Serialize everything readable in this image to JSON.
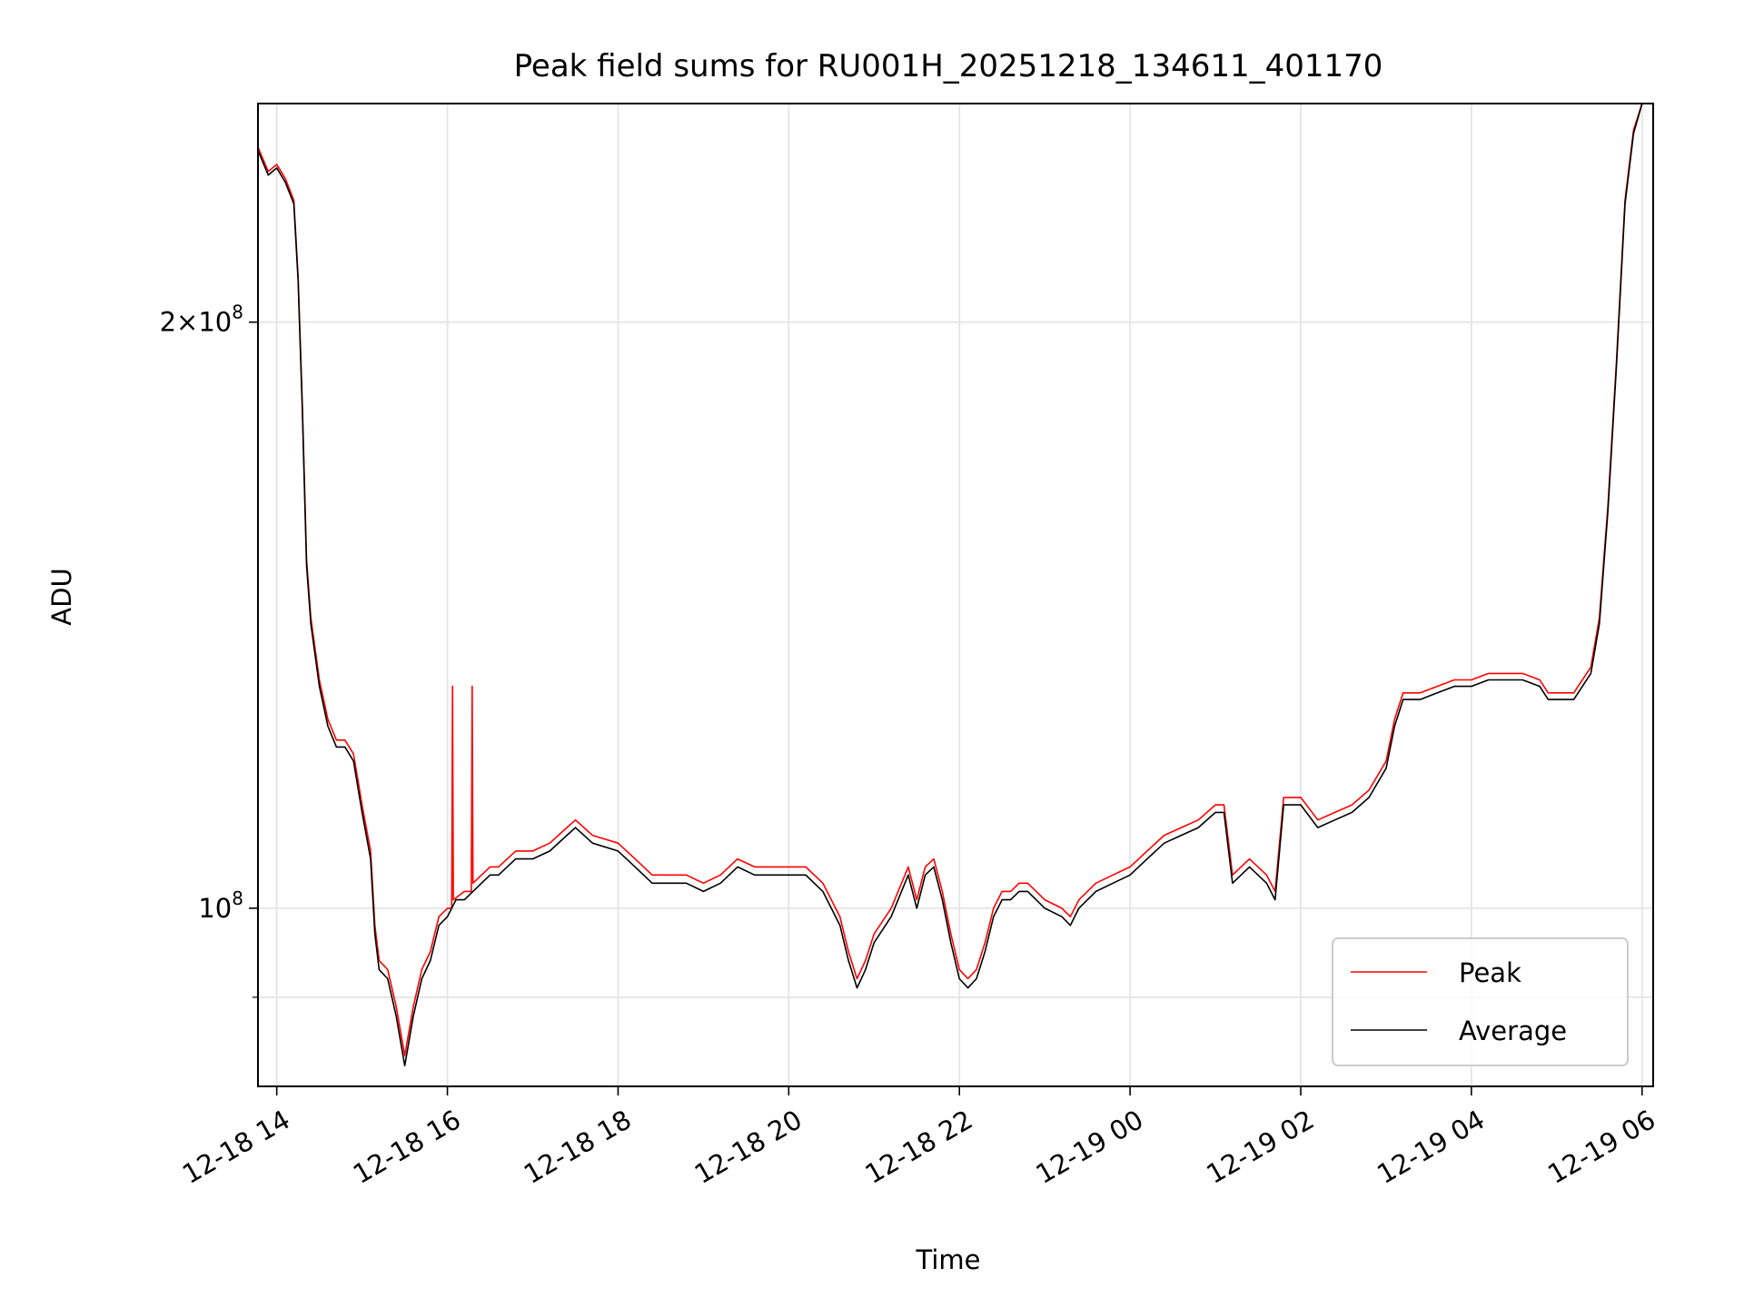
{
  "chart_data": {
    "type": "line",
    "title": "Peak field sums for RU001H_20251218_134611_401170",
    "xlabel": "Time",
    "ylabel": "ADU",
    "yscale": "log",
    "grid": true,
    "x_unit": "hours since 2025-12-18 00:00",
    "xlim": [
      13.78,
      30.13
    ],
    "ylim": [
      81000000,
      259000000
    ],
    "x_ticks": [
      {
        "value": 14,
        "label": "12-18 14"
      },
      {
        "value": 16,
        "label": "12-18 16"
      },
      {
        "value": 18,
        "label": "12-18 18"
      },
      {
        "value": 20,
        "label": "12-18 20"
      },
      {
        "value": 22,
        "label": "12-18 22"
      },
      {
        "value": 24,
        "label": "12-19 00"
      },
      {
        "value": 26,
        "label": "12-19 02"
      },
      {
        "value": 28,
        "label": "12-19 04"
      },
      {
        "value": 30,
        "label": "12-19 06"
      }
    ],
    "y_major_ticks": [
      {
        "value": 100000000,
        "base": "10",
        "exp": "8",
        "coef": ""
      },
      {
        "value": 200000000,
        "base": "10",
        "exp": "8",
        "coef": "2"
      }
    ],
    "y_minor_ticks": [
      90000000
    ],
    "legend": {
      "position": "lower right",
      "entries": [
        {
          "name": "Peak",
          "color": "#ff0000"
        },
        {
          "name": "Average",
          "color": "#000000"
        }
      ]
    },
    "series": [
      {
        "name": "Average",
        "color": "#000000",
        "points": [
          [
            13.78,
            245
          ],
          [
            13.9,
            238
          ],
          [
            14.0,
            240
          ],
          [
            14.1,
            236
          ],
          [
            14.2,
            230
          ],
          [
            14.25,
            210
          ],
          [
            14.3,
            180
          ],
          [
            14.35,
            150
          ],
          [
            14.4,
            140
          ],
          [
            14.5,
            130
          ],
          [
            14.6,
            124
          ],
          [
            14.7,
            121
          ],
          [
            14.8,
            121
          ],
          [
            14.9,
            119
          ],
          [
            15.0,
            112
          ],
          [
            15.1,
            106
          ],
          [
            15.15,
            97
          ],
          [
            15.2,
            93
          ],
          [
            15.3,
            92
          ],
          [
            15.4,
            88
          ],
          [
            15.5,
            83
          ],
          [
            15.6,
            88
          ],
          [
            15.7,
            92
          ],
          [
            15.8,
            94
          ],
          [
            15.9,
            98
          ],
          [
            16.0,
            99
          ],
          [
            16.1,
            101
          ],
          [
            16.2,
            101
          ],
          [
            16.3,
            102
          ],
          [
            16.4,
            103
          ],
          [
            16.5,
            104
          ],
          [
            16.6,
            104
          ],
          [
            16.8,
            106
          ],
          [
            17.0,
            106
          ],
          [
            17.2,
            107
          ],
          [
            17.4,
            109
          ],
          [
            17.5,
            110
          ],
          [
            17.7,
            108
          ],
          [
            18.0,
            107
          ],
          [
            18.2,
            105
          ],
          [
            18.4,
            103
          ],
          [
            18.6,
            103
          ],
          [
            18.8,
            103
          ],
          [
            19.0,
            102
          ],
          [
            19.2,
            103
          ],
          [
            19.4,
            105
          ],
          [
            19.6,
            104
          ],
          [
            19.8,
            104
          ],
          [
            20.0,
            104
          ],
          [
            20.2,
            104
          ],
          [
            20.4,
            102
          ],
          [
            20.6,
            98
          ],
          [
            20.7,
            94
          ],
          [
            20.8,
            91
          ],
          [
            20.9,
            93
          ],
          [
            21.0,
            96
          ],
          [
            21.2,
            99
          ],
          [
            21.4,
            104
          ],
          [
            21.5,
            100
          ],
          [
            21.6,
            104
          ],
          [
            21.7,
            105
          ],
          [
            21.8,
            101
          ],
          [
            21.9,
            96
          ],
          [
            22.0,
            92
          ],
          [
            22.1,
            91
          ],
          [
            22.2,
            92
          ],
          [
            22.3,
            95
          ],
          [
            22.4,
            99
          ],
          [
            22.5,
            101
          ],
          [
            22.6,
            101
          ],
          [
            22.7,
            102
          ],
          [
            22.8,
            102
          ],
          [
            23.0,
            100
          ],
          [
            23.2,
            99
          ],
          [
            23.3,
            98
          ],
          [
            23.4,
            100
          ],
          [
            23.6,
            102
          ],
          [
            23.8,
            103
          ],
          [
            24.0,
            104
          ],
          [
            24.2,
            106
          ],
          [
            24.4,
            108
          ],
          [
            24.6,
            109
          ],
          [
            24.8,
            110
          ],
          [
            25.0,
            112
          ],
          [
            25.1,
            112
          ],
          [
            25.2,
            103
          ],
          [
            25.4,
            105
          ],
          [
            25.6,
            103
          ],
          [
            25.7,
            101
          ],
          [
            25.8,
            113
          ],
          [
            26.0,
            113
          ],
          [
            26.2,
            110
          ],
          [
            26.4,
            111
          ],
          [
            26.6,
            112
          ],
          [
            26.8,
            114
          ],
          [
            27.0,
            118
          ],
          [
            27.1,
            124
          ],
          [
            27.2,
            128
          ],
          [
            27.4,
            128
          ],
          [
            27.6,
            129
          ],
          [
            27.8,
            130
          ],
          [
            28.0,
            130
          ],
          [
            28.2,
            131
          ],
          [
            28.4,
            131
          ],
          [
            28.6,
            131
          ],
          [
            28.8,
            130
          ],
          [
            28.9,
            128
          ],
          [
            29.0,
            128
          ],
          [
            29.2,
            128
          ],
          [
            29.4,
            132
          ],
          [
            29.5,
            140
          ],
          [
            29.6,
            160
          ],
          [
            29.7,
            190
          ],
          [
            29.8,
            230
          ],
          [
            29.9,
            250
          ],
          [
            30.0,
            259
          ]
        ]
      },
      {
        "name": "Peak",
        "color": "#ff0000",
        "points": [
          [
            13.78,
            246
          ],
          [
            13.9,
            239
          ],
          [
            14.0,
            241
          ],
          [
            14.1,
            237
          ],
          [
            14.2,
            231
          ],
          [
            14.25,
            211
          ],
          [
            14.3,
            181
          ],
          [
            14.35,
            151
          ],
          [
            14.4,
            141
          ],
          [
            14.5,
            131
          ],
          [
            14.6,
            125
          ],
          [
            14.7,
            122
          ],
          [
            14.8,
            122
          ],
          [
            14.9,
            120
          ],
          [
            15.0,
            113
          ],
          [
            15.1,
            107
          ],
          [
            15.15,
            98
          ],
          [
            15.2,
            94
          ],
          [
            15.3,
            93
          ],
          [
            15.4,
            89
          ],
          [
            15.5,
            84
          ],
          [
            15.6,
            89
          ],
          [
            15.7,
            93
          ],
          [
            15.8,
            95
          ],
          [
            15.9,
            99
          ],
          [
            16.0,
            100
          ],
          [
            16.05,
            100
          ],
          [
            16.06,
            130
          ],
          [
            16.07,
            101
          ],
          [
            16.2,
            102
          ],
          [
            16.28,
            102
          ],
          [
            16.29,
            130
          ],
          [
            16.3,
            103
          ],
          [
            16.4,
            104
          ],
          [
            16.5,
            105
          ],
          [
            16.6,
            105
          ],
          [
            16.8,
            107
          ],
          [
            17.0,
            107
          ],
          [
            17.2,
            108
          ],
          [
            17.4,
            110
          ],
          [
            17.5,
            111
          ],
          [
            17.7,
            109
          ],
          [
            18.0,
            108
          ],
          [
            18.2,
            106
          ],
          [
            18.4,
            104
          ],
          [
            18.6,
            104
          ],
          [
            18.8,
            104
          ],
          [
            19.0,
            103
          ],
          [
            19.2,
            104
          ],
          [
            19.4,
            106
          ],
          [
            19.6,
            105
          ],
          [
            19.8,
            105
          ],
          [
            20.0,
            105
          ],
          [
            20.2,
            105
          ],
          [
            20.4,
            103
          ],
          [
            20.6,
            99
          ],
          [
            20.7,
            95
          ],
          [
            20.8,
            92
          ],
          [
            20.9,
            94
          ],
          [
            21.0,
            97
          ],
          [
            21.2,
            100
          ],
          [
            21.4,
            105
          ],
          [
            21.5,
            101
          ],
          [
            21.6,
            105
          ],
          [
            21.7,
            106
          ],
          [
            21.8,
            102
          ],
          [
            21.9,
            97
          ],
          [
            22.0,
            93
          ],
          [
            22.1,
            92
          ],
          [
            22.2,
            93
          ],
          [
            22.3,
            96
          ],
          [
            22.4,
            100
          ],
          [
            22.5,
            102
          ],
          [
            22.6,
            102
          ],
          [
            22.7,
            103
          ],
          [
            22.8,
            103
          ],
          [
            23.0,
            101
          ],
          [
            23.2,
            100
          ],
          [
            23.3,
            99
          ],
          [
            23.4,
            101
          ],
          [
            23.6,
            103
          ],
          [
            23.8,
            104
          ],
          [
            24.0,
            105
          ],
          [
            24.2,
            107
          ],
          [
            24.4,
            109
          ],
          [
            24.6,
            110
          ],
          [
            24.8,
            111
          ],
          [
            25.0,
            113
          ],
          [
            25.1,
            113
          ],
          [
            25.2,
            104
          ],
          [
            25.4,
            106
          ],
          [
            25.6,
            104
          ],
          [
            25.7,
            102
          ],
          [
            25.8,
            114
          ],
          [
            26.0,
            114
          ],
          [
            26.2,
            111
          ],
          [
            26.4,
            112
          ],
          [
            26.6,
            113
          ],
          [
            26.8,
            115
          ],
          [
            27.0,
            119
          ],
          [
            27.1,
            125
          ],
          [
            27.2,
            129
          ],
          [
            27.4,
            129
          ],
          [
            27.6,
            130
          ],
          [
            27.8,
            131
          ],
          [
            28.0,
            131
          ],
          [
            28.2,
            132
          ],
          [
            28.4,
            132
          ],
          [
            28.6,
            132
          ],
          [
            28.8,
            131
          ],
          [
            28.9,
            129
          ],
          [
            29.0,
            129
          ],
          [
            29.2,
            129
          ],
          [
            29.4,
            133
          ],
          [
            29.5,
            141
          ],
          [
            29.6,
            161
          ],
          [
            29.7,
            191
          ],
          [
            29.8,
            231
          ],
          [
            29.9,
            251
          ],
          [
            30.0,
            259
          ]
        ]
      }
    ]
  }
}
